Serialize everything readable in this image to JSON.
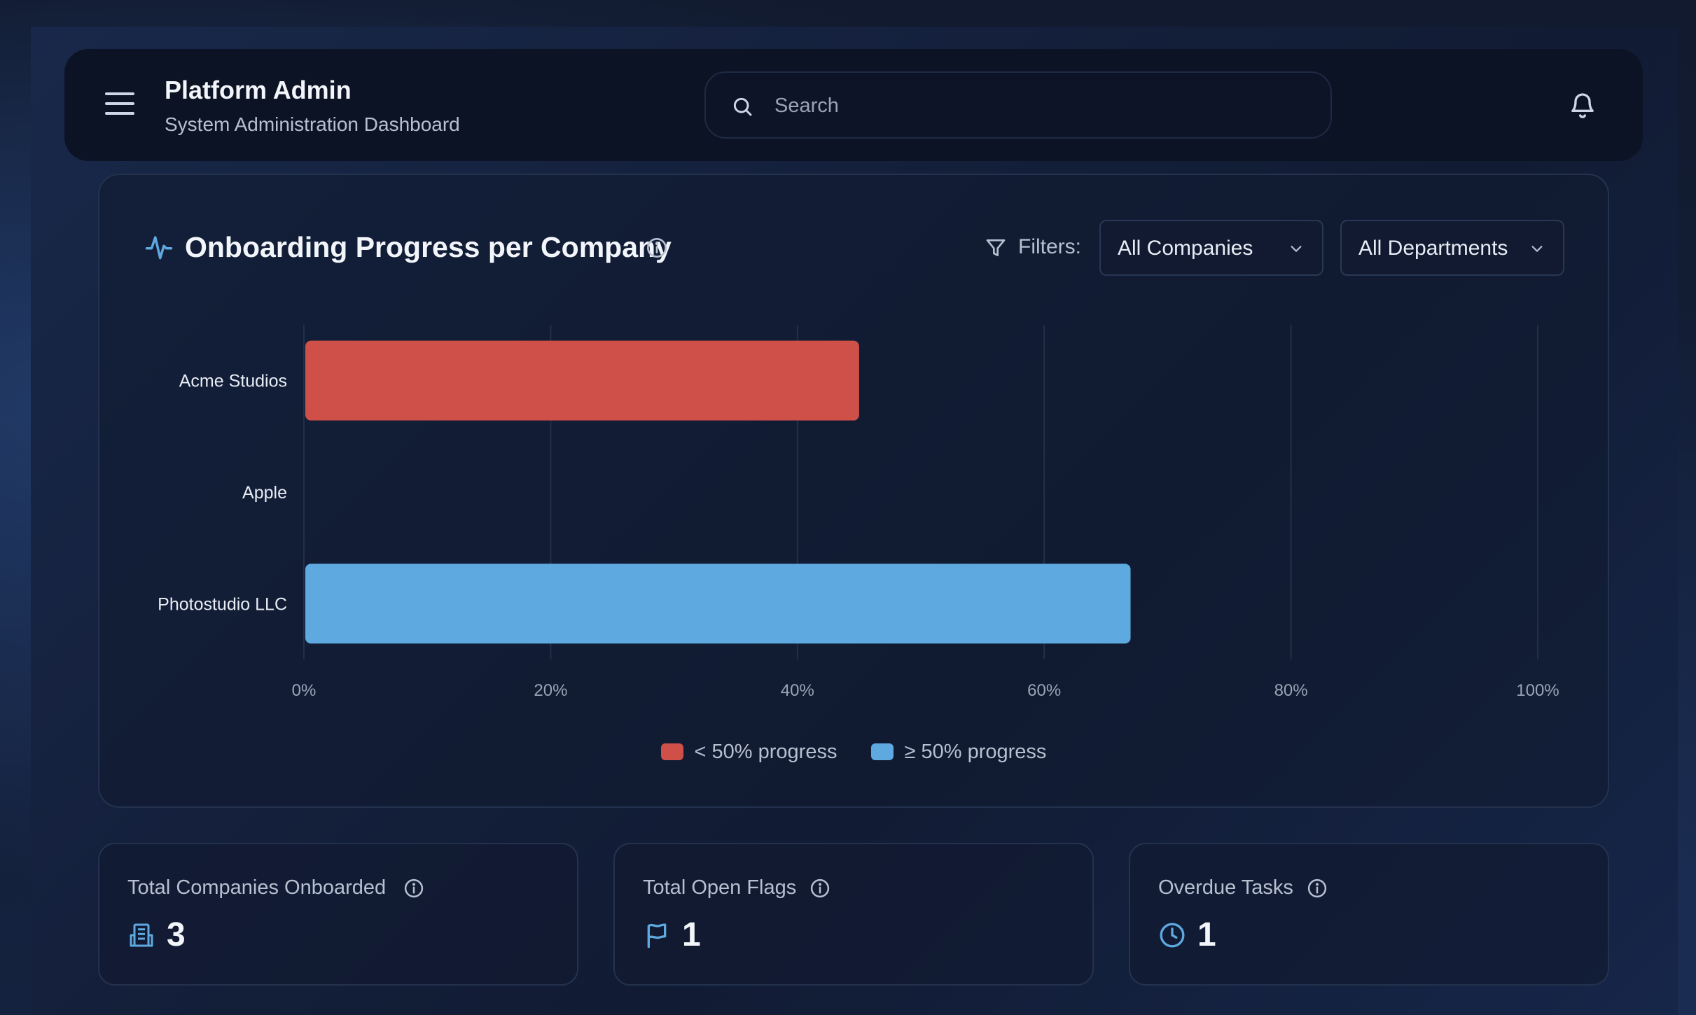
{
  "header": {
    "title": "Platform Admin",
    "subtitle": "System Administration Dashboard",
    "search_placeholder": "Search",
    "icons": {
      "menu": "hamburger-menu-icon",
      "search": "search-icon",
      "notifications": "bell-icon"
    }
  },
  "chart_card": {
    "title": "Onboarding Progress per Company",
    "filters_label": "Filters:",
    "company_filter": "All Companies",
    "department_filter": "All Departments",
    "legend": [
      {
        "label": "< 50% progress",
        "color": "#cf4f49"
      },
      {
        "label": "≥ 50% progress",
        "color": "#5da9e0"
      }
    ]
  },
  "chart_data": {
    "type": "bar",
    "orientation": "horizontal",
    "categories": [
      "Acme Studios",
      "Apple",
      "Photostudio LLC"
    ],
    "values": [
      45,
      0,
      67
    ],
    "xlim": [
      0,
      100
    ],
    "x_ticks": [
      "0%",
      "20%",
      "40%",
      "60%",
      "80%",
      "100%"
    ],
    "colors": {
      "low": "#cf4f49",
      "high": "#5da9e0"
    },
    "threshold": 50,
    "grid": true,
    "legend_position": "bottom-center"
  },
  "stats": [
    {
      "label": "Total Companies Onboarded",
      "value": "3",
      "icon": "building-icon"
    },
    {
      "label": "Total Open Flags",
      "value": "1",
      "icon": "flag-icon"
    },
    {
      "label": "Overdue Tasks",
      "value": "1",
      "icon": "clock-icon"
    }
  ]
}
